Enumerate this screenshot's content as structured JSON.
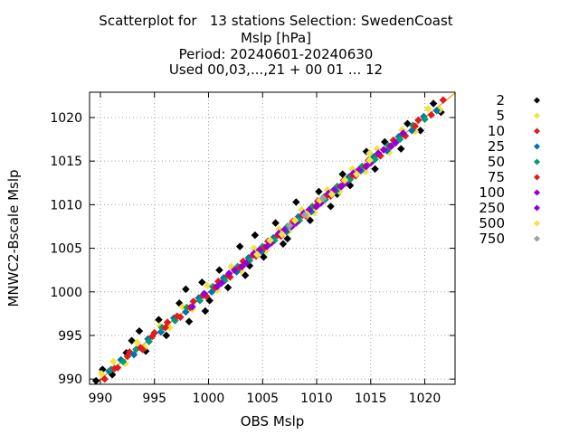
{
  "chart_data": {
    "type": "scatter",
    "title": [
      "Scatterplot for   13 stations Selection: SwedenCoast",
      "Mslp [hPa]",
      "Period: 20240601-20240630",
      "Used 00,03,...,21 + 00 01 ... 12"
    ],
    "xlabel": "OBS Mslp",
    "ylabel": "MNWC2-Bscale Mslp",
    "xlim": [
      989,
      1022.8
    ],
    "ylim": [
      989.4,
      1022.9
    ],
    "x_ticks": [
      "990",
      "995",
      "1000",
      "1005",
      "1010",
      "1015",
      "1020"
    ],
    "y_ticks": [
      "990",
      "995",
      "1000",
      "1005",
      "1010",
      "1015",
      "1020"
    ],
    "grid": true,
    "diagonal_line": true,
    "legend_position": "right",
    "series": [
      {
        "name": "2",
        "color": "#000000",
        "points": [
          [
            989.6,
            989.8
          ],
          [
            990.2,
            991.1
          ],
          [
            991.1,
            990.5
          ],
          [
            992.4,
            993.0
          ],
          [
            993.6,
            995.5
          ],
          [
            994.2,
            993.2
          ],
          [
            995.4,
            996.8
          ],
          [
            996.1,
            995.0
          ],
          [
            997.3,
            998.7
          ],
          [
            998.2,
            996.6
          ],
          [
            999.4,
            1001.1
          ],
          [
            1000.1,
            999.0
          ],
          [
            1001.0,
            1002.5
          ],
          [
            1001.8,
            1000.5
          ],
          [
            1002.9,
            1005.2
          ],
          [
            1003.4,
            1001.9
          ],
          [
            1004.3,
            1006.5
          ],
          [
            1005.1,
            1004.0
          ],
          [
            1006.2,
            1007.9
          ],
          [
            1007.3,
            1006.1
          ],
          [
            1008.1,
            1010.3
          ],
          [
            1009.4,
            1008.2
          ],
          [
            1010.2,
            1011.5
          ],
          [
            1011.3,
            1009.8
          ],
          [
            1012.4,
            1013.5
          ],
          [
            1013.1,
            1012.2
          ],
          [
            1014.6,
            1016.1
          ],
          [
            1015.4,
            1014.1
          ],
          [
            1016.3,
            1017.2
          ],
          [
            1017.8,
            1016.4
          ],
          [
            1018.4,
            1019.3
          ],
          [
            1019.6,
            1018.5
          ],
          [
            1020.8,
            1021.6
          ],
          [
            1021.5,
            1020.6
          ],
          [
            997.9,
            1000.3
          ],
          [
            1003.8,
            1003.0
          ],
          [
            992.9,
            994.4
          ],
          [
            1011.9,
            1011.2
          ],
          [
            1006.9,
            1005.5
          ],
          [
            999.7,
            997.8
          ]
        ]
      },
      {
        "name": "5",
        "color": "#f0e442",
        "points": [
          [
            990.1,
            990.6
          ],
          [
            991.2,
            992.0
          ],
          [
            992.3,
            991.8
          ],
          [
            993.4,
            994.2
          ],
          [
            994.1,
            993.6
          ],
          [
            995.5,
            996.1
          ],
          [
            996.4,
            995.9
          ],
          [
            997.6,
            998.3
          ],
          [
            998.5,
            998.0
          ],
          [
            999.9,
            1000.7
          ],
          [
            1000.8,
            1000.2
          ],
          [
            1002.1,
            1002.9
          ],
          [
            1003.0,
            1002.4
          ],
          [
            1004.2,
            1005.0
          ],
          [
            1005.3,
            1004.7
          ],
          [
            1006.5,
            1007.2
          ],
          [
            1007.4,
            1006.9
          ],
          [
            1008.6,
            1009.4
          ],
          [
            1009.8,
            1009.1
          ],
          [
            1011.0,
            1011.7
          ],
          [
            1012.1,
            1011.5
          ],
          [
            1013.3,
            1014.1
          ],
          [
            1014.5,
            1013.8
          ],
          [
            1015.6,
            1016.4
          ],
          [
            1016.7,
            1016.0
          ],
          [
            1017.9,
            1018.6
          ],
          [
            1019.1,
            1018.4
          ],
          [
            1020.3,
            1021.0
          ],
          [
            1021.4,
            1020.9
          ],
          [
            1014.9,
            1015.9
          ]
        ]
      },
      {
        "name": "10",
        "color": "#e41a1c",
        "points": [
          [
            990.4,
            990.0
          ],
          [
            991.6,
            991.3
          ],
          [
            992.7,
            993.1
          ],
          [
            993.9,
            993.4
          ],
          [
            995.0,
            995.3
          ],
          [
            996.2,
            996.5
          ],
          [
            997.4,
            997.1
          ],
          [
            998.6,
            998.9
          ],
          [
            999.8,
            999.5
          ],
          [
            1000.9,
            1001.2
          ],
          [
            1002.0,
            1001.7
          ],
          [
            1003.2,
            1003.5
          ],
          [
            1004.4,
            1004.1
          ],
          [
            1005.5,
            1005.8
          ],
          [
            1006.7,
            1006.4
          ],
          [
            1007.8,
            1008.1
          ],
          [
            1009.0,
            1008.7
          ],
          [
            1010.1,
            1010.4
          ],
          [
            1011.3,
            1011.0
          ],
          [
            1012.5,
            1012.8
          ],
          [
            1013.6,
            1013.3
          ],
          [
            1014.8,
            1015.1
          ],
          [
            1015.9,
            1015.6
          ],
          [
            1017.1,
            1017.4
          ],
          [
            1018.2,
            1017.9
          ],
          [
            1019.4,
            1019.7
          ],
          [
            1020.6,
            1020.3
          ],
          [
            1021.7,
            1022.0
          ]
        ]
      },
      {
        "name": "25",
        "color": "#0072b2",
        "points": [
          [
            990.8,
            990.9
          ],
          [
            991.9,
            992.2
          ],
          [
            993.1,
            992.8
          ],
          [
            994.4,
            994.6
          ],
          [
            995.6,
            995.4
          ],
          [
            996.8,
            997.0
          ],
          [
            997.9,
            997.7
          ],
          [
            999.1,
            999.3
          ],
          [
            1000.3,
            1000.0
          ],
          [
            1001.4,
            1001.6
          ],
          [
            1002.6,
            1002.3
          ],
          [
            1003.7,
            1003.9
          ],
          [
            1004.9,
            1004.6
          ],
          [
            1006.0,
            1006.2
          ],
          [
            1007.2,
            1006.9
          ],
          [
            1008.3,
            1008.6
          ],
          [
            1009.5,
            1009.2
          ],
          [
            1010.7,
            1010.9
          ],
          [
            1011.8,
            1011.6
          ],
          [
            1013.0,
            1013.2
          ],
          [
            1014.1,
            1013.9
          ],
          [
            1015.3,
            1015.5
          ],
          [
            1016.5,
            1016.2
          ],
          [
            1017.6,
            1017.8
          ],
          [
            1018.8,
            1018.5
          ],
          [
            1019.9,
            1020.1
          ],
          [
            1021.1,
            1020.8
          ]
        ]
      },
      {
        "name": "50",
        "color": "#009e73",
        "points": [
          [
            991.0,
            991.1
          ],
          [
            992.1,
            992.0
          ],
          [
            993.3,
            993.4
          ],
          [
            994.5,
            994.3
          ],
          [
            995.7,
            995.9
          ],
          [
            996.9,
            996.7
          ],
          [
            998.0,
            998.2
          ],
          [
            999.2,
            999.0
          ],
          [
            1000.4,
            1000.6
          ],
          [
            1001.5,
            1001.3
          ],
          [
            1002.7,
            1002.9
          ],
          [
            1003.8,
            1003.6
          ],
          [
            1005.0,
            1005.2
          ],
          [
            1006.1,
            1005.9
          ],
          [
            1007.3,
            1007.5
          ],
          [
            1008.4,
            1008.2
          ],
          [
            1009.6,
            1009.8
          ],
          [
            1010.8,
            1010.6
          ],
          [
            1011.9,
            1012.1
          ],
          [
            1013.1,
            1012.9
          ],
          [
            1014.2,
            1014.4
          ],
          [
            1015.4,
            1015.2
          ],
          [
            1016.6,
            1016.8
          ],
          [
            1017.7,
            1017.5
          ],
          [
            1018.9,
            1019.1
          ],
          [
            1020.0,
            1019.8
          ]
        ]
      },
      {
        "name": "75",
        "color": "#e41a1c",
        "points": [
          [
            991.3,
            991.2
          ],
          [
            992.5,
            992.6
          ],
          [
            993.7,
            993.6
          ],
          [
            994.8,
            994.9
          ],
          [
            996.0,
            995.9
          ],
          [
            997.1,
            997.2
          ],
          [
            998.3,
            998.2
          ],
          [
            999.5,
            999.6
          ],
          [
            1000.6,
            1000.5
          ],
          [
            1001.8,
            1001.9
          ],
          [
            1002.9,
            1002.8
          ],
          [
            1004.1,
            1004.2
          ],
          [
            1005.2,
            1005.1
          ],
          [
            1006.4,
            1006.5
          ],
          [
            1007.6,
            1007.5
          ],
          [
            1008.7,
            1008.8
          ],
          [
            1009.9,
            1009.8
          ],
          [
            1011.0,
            1011.1
          ],
          [
            1012.2,
            1012.1
          ],
          [
            1013.3,
            1013.4
          ],
          [
            1014.5,
            1014.4
          ],
          [
            1015.7,
            1015.8
          ],
          [
            1016.8,
            1016.7
          ],
          [
            1018.0,
            1018.1
          ],
          [
            1019.1,
            1019.0
          ]
        ]
      },
      {
        "name": "100",
        "color": "#9400d3",
        "points": [
          [
            998.5,
            998.3
          ],
          [
            999.6,
            999.8
          ],
          [
            1000.8,
            1000.6
          ],
          [
            1001.9,
            1002.1
          ],
          [
            1003.1,
            1002.9
          ],
          [
            1004.2,
            1004.4
          ],
          [
            1005.4,
            1005.2
          ],
          [
            1006.5,
            1006.7
          ],
          [
            1007.7,
            1007.5
          ],
          [
            1008.8,
            1009.0
          ],
          [
            1010.0,
            1009.8
          ],
          [
            1011.1,
            1011.3
          ],
          [
            1012.3,
            1012.1
          ],
          [
            1013.4,
            1013.6
          ],
          [
            1014.6,
            1014.4
          ],
          [
            1015.7,
            1015.9
          ],
          [
            1016.9,
            1016.7
          ],
          [
            1018.0,
            1018.2
          ]
        ]
      },
      {
        "name": "250",
        "color": "#9400d3",
        "points": [
          [
            1001.2,
            1001.0
          ],
          [
            1002.4,
            1002.5
          ],
          [
            1003.5,
            1003.3
          ],
          [
            1004.7,
            1004.8
          ],
          [
            1005.8,
            1005.6
          ],
          [
            1007.0,
            1007.1
          ],
          [
            1008.1,
            1007.9
          ],
          [
            1009.3,
            1009.4
          ],
          [
            1010.4,
            1010.2
          ],
          [
            1011.6,
            1011.7
          ],
          [
            1012.7,
            1012.5
          ],
          [
            1013.9,
            1014.0
          ],
          [
            1015.0,
            1014.8
          ],
          [
            1016.2,
            1016.3
          ],
          [
            1017.3,
            1017.1
          ]
        ]
      },
      {
        "name": "500",
        "color": "#f0e442",
        "points": [
          [
            1004.5,
            1004.3
          ],
          [
            1005.7,
            1005.9
          ],
          [
            1006.8,
            1006.6
          ],
          [
            1008.0,
            1008.2
          ],
          [
            1009.1,
            1008.9
          ],
          [
            1010.3,
            1010.5
          ],
          [
            1011.4,
            1011.2
          ],
          [
            1012.6,
            1012.8
          ],
          [
            1013.7,
            1013.5
          ],
          [
            1014.9,
            1015.1
          ]
        ]
      },
      {
        "name": "750",
        "color": "#a0a0a0",
        "points": [
          [
            1007.5,
            1007.6
          ],
          [
            1008.9,
            1008.8
          ],
          [
            1010.6,
            1010.7
          ]
        ]
      }
    ]
  }
}
